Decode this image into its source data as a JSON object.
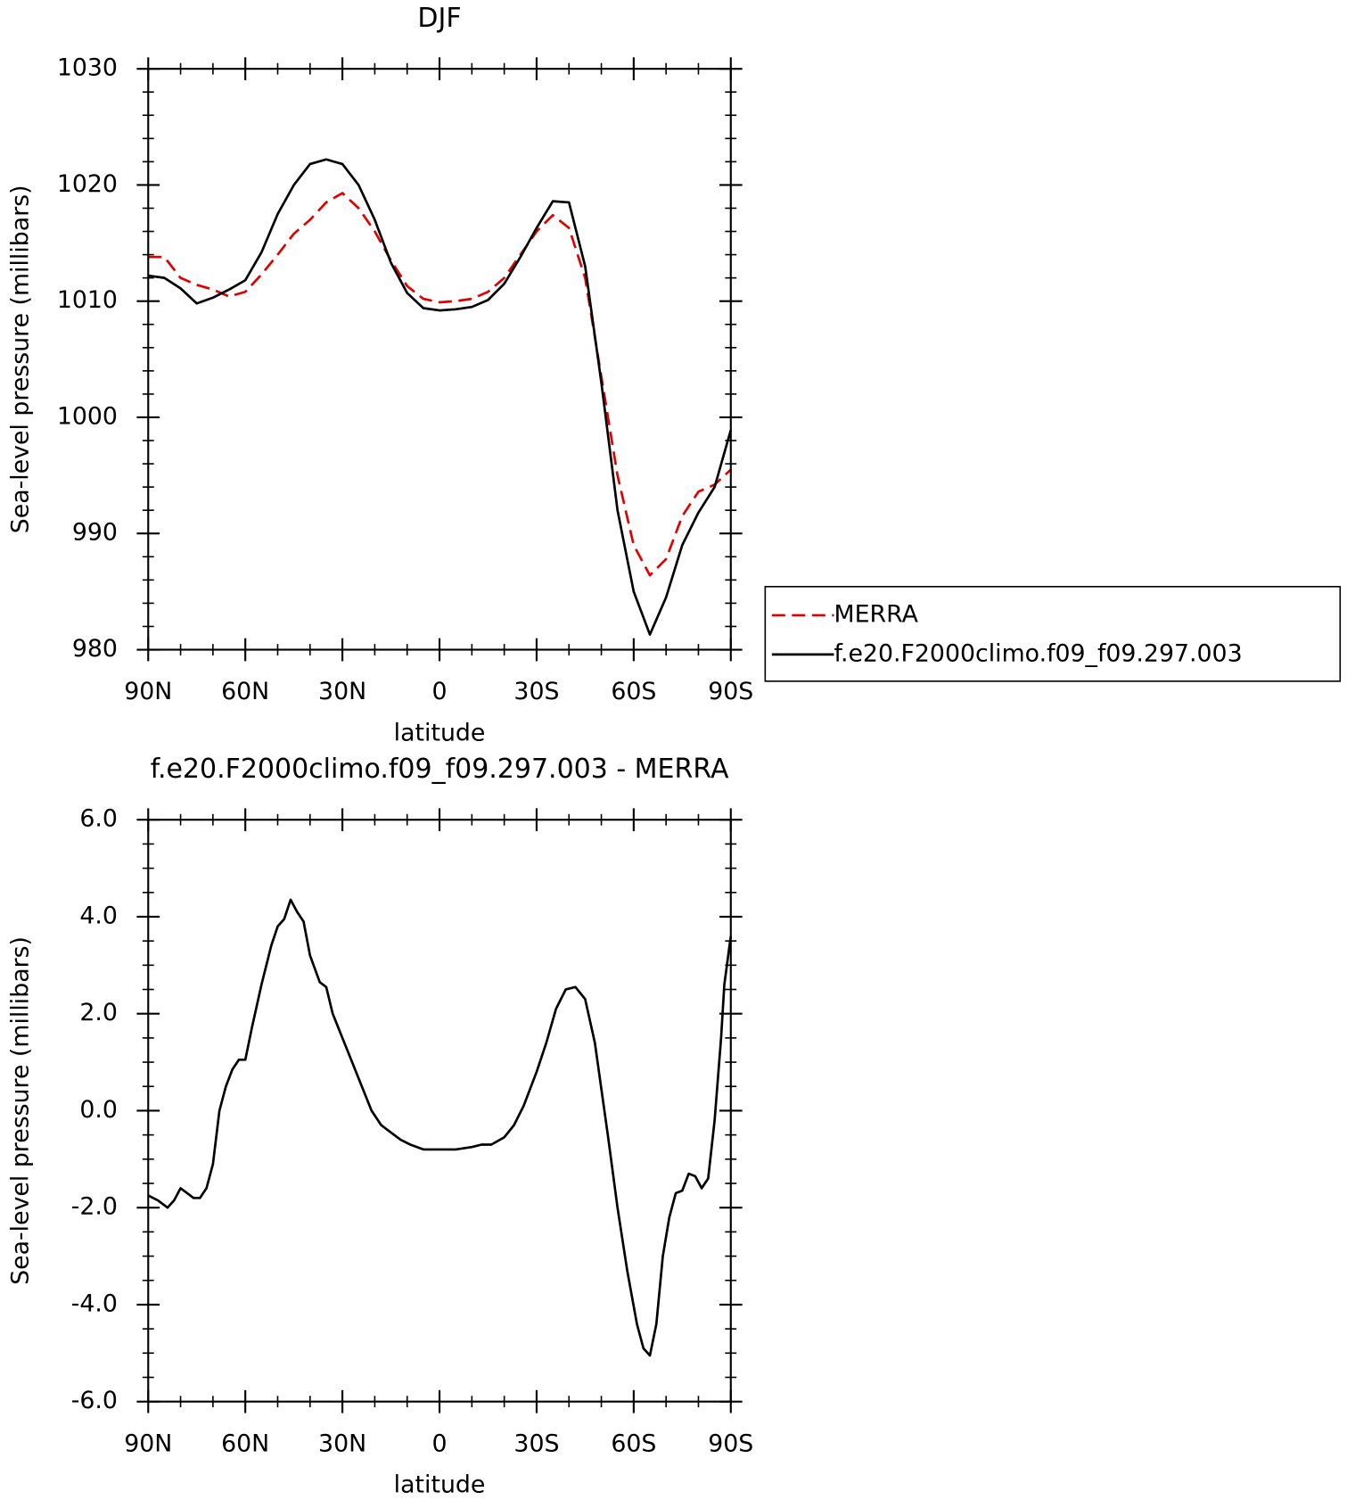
{
  "chart_data": [
    {
      "type": "line",
      "title": "DJF",
      "xlabel": "latitude",
      "ylabel": "Sea-level pressure (millibars)",
      "x": [
        90,
        85,
        80,
        75,
        70,
        65,
        60,
        55,
        50,
        45,
        40,
        35,
        30,
        25,
        20,
        15,
        10,
        5,
        0,
        -5,
        -10,
        -15,
        -20,
        -25,
        -30,
        -35,
        -40,
        -45,
        -50,
        -55,
        -60,
        -65,
        -70,
        -75,
        -80,
        -85,
        -90
      ],
      "series": [
        {
          "name": "MERRA",
          "color": "#e00000",
          "dashed": true,
          "values": [
            1013.8,
            1013.8,
            1012,
            1011.4,
            1011,
            1010.4,
            1010.8,
            1012.3,
            1014,
            1015.8,
            1017,
            1018.5,
            1019.3,
            1018,
            1016,
            1013.5,
            1011.3,
            1010.2,
            1009.9,
            1010,
            1010.2,
            1010.8,
            1012,
            1014,
            1016,
            1017.4,
            1016.3,
            1012,
            1003.5,
            995,
            989,
            986.4,
            987.8,
            991.5,
            993.6,
            994.2,
            995.5
          ]
        },
        {
          "name": "f.e20.F2000climo.f09_f09.297.003",
          "color": "#000000",
          "dashed": false,
          "values": [
            1012.2,
            1012,
            1011.1,
            1009.8,
            1010.3,
            1011,
            1011.8,
            1014.2,
            1017.5,
            1020,
            1021.8,
            1022.2,
            1021.8,
            1020,
            1017,
            1013.3,
            1010.7,
            1009.4,
            1009.2,
            1009.3,
            1009.5,
            1010.1,
            1011.5,
            1013.8,
            1016.3,
            1018.6,
            1018.5,
            1013,
            1003,
            992,
            985,
            981.3,
            984.5,
            989,
            991.8,
            994,
            998.9
          ]
        }
      ],
      "xlim": [
        90,
        -90
      ],
      "xticks": [
        {
          "value": 90,
          "label": "90N"
        },
        {
          "value": 60,
          "label": "60N"
        },
        {
          "value": 30,
          "label": "30N"
        },
        0,
        {
          "value": -30,
          "label": "30S"
        },
        {
          "value": -60,
          "label": "60S"
        },
        {
          "value": -90,
          "label": "90S"
        }
      ],
      "xminorticks": [
        80,
        70,
        50,
        40,
        20,
        10,
        -10,
        -20,
        -40,
        -50,
        -70,
        -80
      ],
      "ylim": [
        980,
        1030
      ],
      "yticks": [
        980,
        990,
        1000,
        1010,
        1020,
        1030
      ],
      "yminorticks": [
        982,
        984,
        986,
        988,
        992,
        994,
        996,
        998,
        1002,
        1004,
        1006,
        1008,
        1012,
        1014,
        1016,
        1018,
        1022,
        1024,
        1026,
        1028
      ],
      "legend": "outside-right"
    },
    {
      "type": "line",
      "title": "f.e20.F2000climo.f09_f09.297.003 - MERRA",
      "xlabel": "latitude",
      "ylabel": "Sea-level pressure (millibars)",
      "x": [
        90,
        87,
        84,
        82,
        80,
        78,
        76,
        74,
        72,
        70,
        68,
        66,
        64,
        62,
        60,
        58,
        55,
        52,
        50,
        48,
        46,
        44,
        42,
        40,
        37,
        35,
        33,
        30,
        27,
        24,
        21,
        18,
        15,
        12,
        9,
        5,
        0,
        -5,
        -10,
        -13,
        -16,
        -20,
        -23,
        -26,
        -30,
        -33,
        -36,
        -39,
        -42,
        -45,
        -48,
        -52,
        -55,
        -58,
        -61,
        -63,
        -65,
        -67,
        -69,
        -71,
        -73,
        -75,
        -77,
        -79,
        -81,
        -83,
        -85,
        -87,
        -88,
        -90
      ],
      "series": [
        {
          "color": "#000000",
          "dashed": false,
          "values": [
            -1.75,
            -1.85,
            -2.0,
            -1.85,
            -1.6,
            -1.7,
            -1.8,
            -1.8,
            -1.6,
            -1.1,
            0,
            0.5,
            0.85,
            1.05,
            1.05,
            1.7,
            2.6,
            3.4,
            3.8,
            3.95,
            4.35,
            4.1,
            3.9,
            3.2,
            2.65,
            2.55,
            2.0,
            1.5,
            1.0,
            0.5,
            0,
            -0.3,
            -0.45,
            -0.6,
            -0.7,
            -0.8,
            -0.8,
            -0.8,
            -0.75,
            -0.7,
            -0.7,
            -0.55,
            -0.3,
            0.1,
            0.8,
            1.4,
            2.1,
            2.5,
            2.55,
            2.3,
            1.4,
            -0.5,
            -2,
            -3.3,
            -4.4,
            -4.9,
            -5.05,
            -4.4,
            -3,
            -2.2,
            -1.7,
            -1.65,
            -1.3,
            -1.35,
            -1.6,
            -1.4,
            -0.2,
            1.5,
            2.6,
            3.6
          ]
        }
      ],
      "xlim": [
        90,
        -90
      ],
      "xticks": [
        {
          "value": 90,
          "label": "90N"
        },
        {
          "value": 60,
          "label": "60N"
        },
        {
          "value": 30,
          "label": "30N"
        },
        0,
        {
          "value": -30,
          "label": "30S"
        },
        {
          "value": -60,
          "label": "60S"
        },
        {
          "value": -90,
          "label": "90S"
        }
      ],
      "xminorticks": [
        80,
        70,
        50,
        40,
        20,
        10,
        -10,
        -20,
        -40,
        -50,
        -70,
        -80
      ],
      "ylim": [
        -6,
        6
      ],
      "yticks": [
        {
          "value": -6,
          "label": "-6.0"
        },
        {
          "value": -4,
          "label": "-4.0"
        },
        {
          "value": -2,
          "label": "-2.0"
        },
        {
          "value": 0,
          "label": "0.0"
        },
        {
          "value": 2,
          "label": "2.0"
        },
        {
          "value": 4,
          "label": "4.0"
        },
        {
          "value": 6,
          "label": "6.0"
        }
      ],
      "yminorticks": [
        -5.5,
        -5,
        -4.5,
        -3.5,
        -3,
        -2.5,
        -1.5,
        -1,
        -0.5,
        0.5,
        1,
        1.5,
        2.5,
        3,
        3.5,
        4.5,
        5,
        5.5
      ]
    }
  ]
}
